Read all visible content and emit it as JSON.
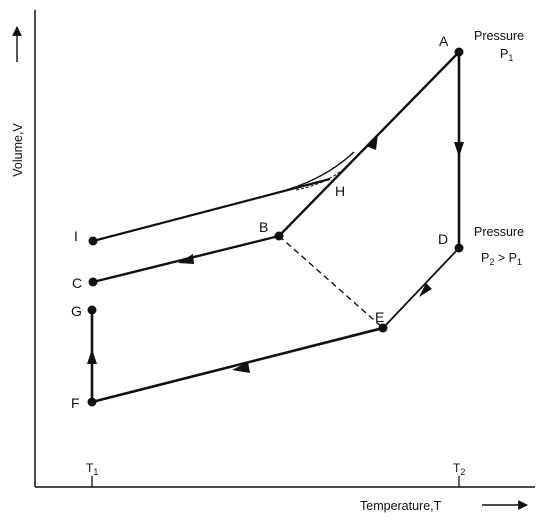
{
  "axes": {
    "y_label": "Volume,V",
    "x_label": "Temperature,T"
  },
  "ticks": {
    "t1": {
      "base": "T",
      "sub": "1"
    },
    "t2": {
      "base": "T",
      "sub": "2"
    }
  },
  "annotations": {
    "pressure_p1": {
      "word": "Pressure",
      "base": "P",
      "sub": "1"
    },
    "pressure_p2": {
      "word": "Pressure",
      "expr_base": "P",
      "expr_sub": "2",
      "expr_mid": " > P",
      "expr_sub2": "1"
    }
  },
  "points": {
    "A": "A",
    "B": "B",
    "C": "C",
    "D": "D",
    "E": "E",
    "F": "F",
    "G": "G",
    "H": "H",
    "I": "I"
  },
  "colors": {
    "ink": "#111111",
    "background": "#ffffff"
  }
}
